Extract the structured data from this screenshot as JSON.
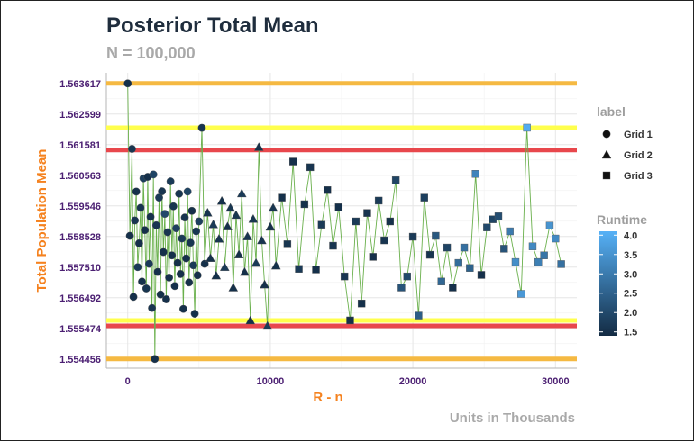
{
  "chart_data": {
    "type": "scatter",
    "title": "Posterior Total Mean",
    "subtitle": "N = 100,000",
    "caption": "Units in Thousands",
    "xlabel": "R - n",
    "ylabel": "Total Population Mean",
    "xlim": [
      -1500,
      31500
    ],
    "ylim": [
      1.55415,
      1.56397
    ],
    "x_ticks": [
      0,
      10000,
      20000,
      30000
    ],
    "x_tick_labels": [
      "0",
      "10000",
      "20000",
      "30000"
    ],
    "y_ticks": [
      1.554456,
      1.555474,
      1.556492,
      1.55751,
      1.558528,
      1.559546,
      1.560563,
      1.561581,
      1.562599,
      1.563617
    ],
    "y_tick_labels": [
      "1.554456",
      "1.555474",
      "1.556492",
      "1.557510",
      "1.558528",
      "1.559546",
      "1.560563",
      "1.561581",
      "1.562599",
      "1.563617"
    ],
    "grid": true,
    "legend_position": "right",
    "legend_shape": {
      "title": "label",
      "items": [
        {
          "label": "Grid 1",
          "shape": "circle"
        },
        {
          "label": "Grid 2",
          "shape": "triangle"
        },
        {
          "label": "Grid 3",
          "shape": "square"
        }
      ]
    },
    "legend_color": {
      "title": "Runtime",
      "ticks": [
        "4.0",
        "3.5",
        "3.0",
        "2.5",
        "2.0",
        "1.5"
      ],
      "min": 1.4,
      "max": 4.1,
      "color_low": "#132b43",
      "color_high": "#56b1f7"
    },
    "hlines": [
      {
        "y": 1.563617,
        "color": "#f5b942"
      },
      {
        "y": 1.554456,
        "color": "#f5b942"
      },
      {
        "y": 1.562145,
        "color": "#ffff4d"
      },
      {
        "y": 1.555738,
        "color": "#ffff4d"
      },
      {
        "y": 1.561401,
        "color": "#e8474c"
      },
      {
        "y": 1.555558,
        "color": "#e8474c"
      }
    ],
    "line_color": "#6ab04c",
    "series": [
      {
        "shape": "circle",
        "points": [
          [
            0,
            1.563617,
            1.5
          ],
          [
            150,
            1.55855,
            1.5
          ],
          [
            300,
            1.56144,
            1.6
          ],
          [
            400,
            1.55652,
            1.5
          ],
          [
            500,
            1.55906,
            1.6
          ],
          [
            600,
            1.56002,
            1.5
          ],
          [
            700,
            1.55751,
            1.7
          ],
          [
            800,
            1.5583,
            1.5
          ],
          [
            900,
            1.55948,
            1.6
          ],
          [
            1000,
            1.55703,
            1.5
          ],
          [
            1100,
            1.56046,
            1.8
          ],
          [
            1200,
            1.55874,
            1.5
          ],
          [
            1300,
            1.5568,
            1.6
          ],
          [
            1400,
            1.56051,
            1.5
          ],
          [
            1500,
            1.55762,
            1.7
          ],
          [
            1600,
            1.55918,
            1.5
          ],
          [
            1700,
            1.55615,
            1.6
          ],
          [
            1800,
            1.56059,
            1.9
          ],
          [
            1900,
            1.554456,
            1.5
          ],
          [
            2000,
            1.5589,
            1.6
          ],
          [
            2100,
            1.55735,
            1.5
          ],
          [
            2200,
            1.55982,
            1.7
          ],
          [
            2300,
            1.5566,
            1.5
          ],
          [
            2400,
            1.56003,
            1.6
          ],
          [
            2500,
            1.55801,
            1.5
          ],
          [
            2600,
            1.55928,
            2.0
          ],
          [
            2700,
            1.55644,
            1.5
          ],
          [
            2800,
            1.55867,
            1.6
          ],
          [
            2900,
            1.55716,
            1.5
          ],
          [
            3000,
            1.56036,
            1.7
          ],
          [
            3100,
            1.5579,
            1.5
          ],
          [
            3200,
            1.55953,
            1.6
          ],
          [
            3300,
            1.55688,
            1.5
          ],
          [
            3400,
            1.5588,
            1.8
          ],
          [
            3500,
            1.55765,
            1.5
          ],
          [
            3600,
            1.55995,
            1.6
          ],
          [
            3700,
            1.55728,
            1.5
          ],
          [
            3800,
            1.55846,
            1.7
          ],
          [
            3900,
            1.55612,
            1.5
          ],
          [
            4000,
            1.55916,
            1.6
          ],
          [
            4100,
            1.5578,
            1.5
          ],
          [
            4200,
            1.56002,
            1.9
          ],
          [
            4300,
            1.557,
            1.5
          ],
          [
            4400,
            1.55832,
            1.6
          ],
          [
            4500,
            1.55938,
            1.5
          ],
          [
            4600,
            1.55757,
            1.7
          ],
          [
            4700,
            1.55596,
            1.5
          ],
          [
            4800,
            1.5587,
            1.6
          ],
          [
            4900,
            1.55724,
            1.5
          ],
          [
            5000,
            1.55903,
            1.8
          ],
          [
            5200,
            1.56214,
            1.6
          ],
          [
            5400,
            1.55762,
            1.5
          ]
        ]
      },
      {
        "shape": "triangle",
        "points": [
          [
            5600,
            1.55932,
            1.6
          ],
          [
            5800,
            1.55781,
            1.5
          ],
          [
            6000,
            1.55893,
            1.7
          ],
          [
            6200,
            1.55723,
            1.5
          ],
          [
            6400,
            1.55845,
            1.6
          ],
          [
            6600,
            1.55971,
            1.5
          ],
          [
            6800,
            1.55751,
            1.7
          ],
          [
            7000,
            1.55886,
            1.5
          ],
          [
            7200,
            1.55948,
            1.6
          ],
          [
            7400,
            1.55683,
            1.5
          ],
          [
            7600,
            1.55924,
            1.6
          ],
          [
            7800,
            1.55793,
            1.5
          ],
          [
            8000,
            1.55996,
            1.7
          ],
          [
            8200,
            1.55735,
            1.5
          ],
          [
            8400,
            1.55853,
            1.6
          ],
          [
            8600,
            1.555738,
            1.5
          ],
          [
            8800,
            1.55911,
            1.6
          ],
          [
            9000,
            1.55765,
            1.7
          ],
          [
            9200,
            1.5615,
            1.5
          ],
          [
            9400,
            1.5584,
            1.6
          ],
          [
            9600,
            1.55693,
            1.5
          ],
          [
            9800,
            1.555558,
            1.7
          ],
          [
            10000,
            1.55885,
            1.5
          ],
          [
            10200,
            1.55948,
            1.6
          ],
          [
            10400,
            1.55756,
            1.5
          ]
        ]
      },
      {
        "shape": "square",
        "points": [
          [
            10800,
            1.55982,
            1.5
          ],
          [
            11200,
            1.55827,
            1.6
          ],
          [
            11600,
            1.56102,
            1.5
          ],
          [
            12000,
            1.55745,
            1.7
          ],
          [
            12400,
            1.5596,
            1.5
          ],
          [
            12800,
            1.56083,
            1.6
          ],
          [
            13200,
            1.55743,
            1.5
          ],
          [
            13600,
            1.55892,
            1.7
          ],
          [
            14000,
            1.56007,
            1.5
          ],
          [
            14400,
            1.55822,
            1.6
          ],
          [
            14800,
            1.5595,
            1.5
          ],
          [
            15200,
            1.5572,
            1.6
          ],
          [
            15600,
            1.555738,
            1.5
          ],
          [
            16000,
            1.55903,
            1.7
          ],
          [
            16400,
            1.5563,
            1.5
          ],
          [
            16800,
            1.55931,
            1.6
          ],
          [
            17200,
            1.55785,
            1.5
          ],
          [
            17600,
            1.55972,
            1.7
          ],
          [
            18000,
            1.5584,
            1.6
          ],
          [
            18400,
            1.55903,
            1.5
          ],
          [
            18800,
            1.5604,
            1.9
          ],
          [
            19200,
            1.55683,
            2.2
          ],
          [
            19600,
            1.5572,
            2.0
          ],
          [
            20000,
            1.55852,
            1.7
          ],
          [
            20400,
            1.5559,
            2.4
          ],
          [
            20800,
            1.55982,
            1.8
          ],
          [
            21200,
            1.55792,
            1.6
          ],
          [
            21600,
            1.55855,
            2.3
          ],
          [
            22000,
            1.55703,
            2.6
          ],
          [
            22400,
            1.55816,
            1.9
          ],
          [
            22800,
            1.55683,
            1.5
          ],
          [
            23200,
            1.55765,
            2.7
          ],
          [
            23600,
            1.55816,
            2.8
          ],
          [
            24000,
            1.55748,
            2.5
          ],
          [
            24400,
            1.56061,
            3.2
          ],
          [
            24800,
            1.55725,
            1.5
          ],
          [
            25200,
            1.55883,
            2.0
          ],
          [
            25600,
            1.5591,
            1.9
          ],
          [
            26000,
            1.5592,
            2.1
          ],
          [
            26400,
            1.55812,
            2.2
          ],
          [
            26800,
            1.5587,
            3.0
          ],
          [
            27200,
            1.55768,
            3.4
          ],
          [
            27600,
            1.55662,
            3.6
          ],
          [
            28000,
            1.562145,
            4.0
          ],
          [
            28400,
            1.5582,
            3.3
          ],
          [
            28800,
            1.55768,
            3.1
          ],
          [
            29200,
            1.5579,
            2.9
          ],
          [
            29600,
            1.55889,
            3.5
          ],
          [
            30000,
            1.55846,
            3.3
          ],
          [
            30400,
            1.55761,
            2.8
          ]
        ]
      }
    ]
  }
}
